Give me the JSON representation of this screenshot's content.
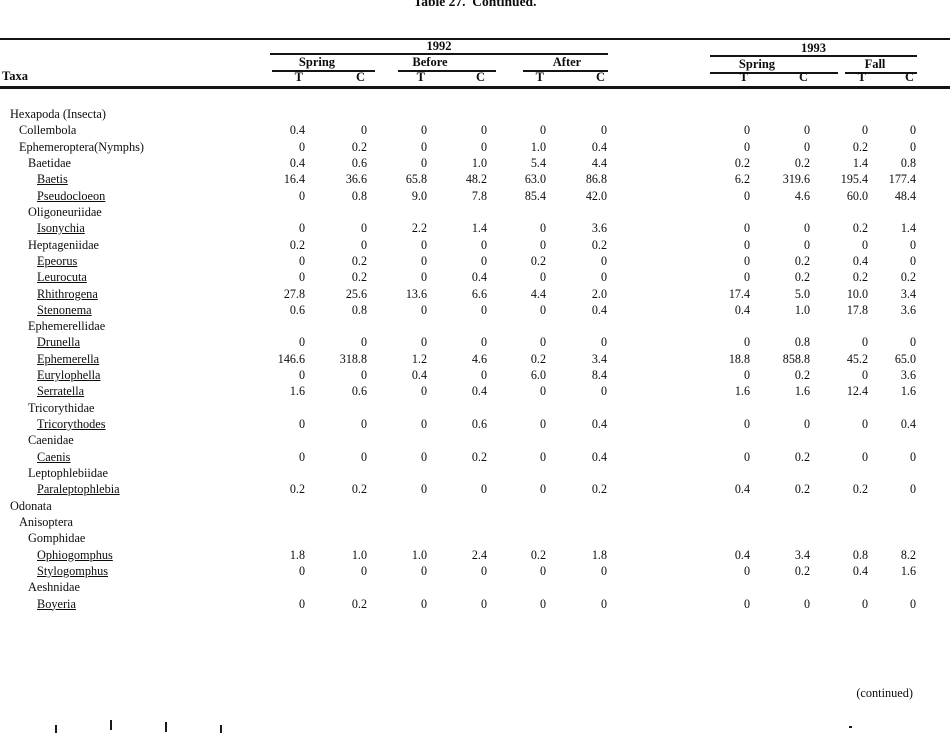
{
  "title": "Table 27.  Continued.",
  "table": {
    "taxa_header": "Taxa",
    "year_groups": [
      {
        "label": "1992",
        "seasons": [
          {
            "label": "Spring",
            "cols": [
              "T",
              "C"
            ]
          },
          {
            "label": "Before",
            "cols": [
              "T",
              "C"
            ]
          },
          {
            "label": "After",
            "cols": [
              "T",
              "C"
            ]
          }
        ]
      },
      {
        "label": "1993",
        "seasons": [
          {
            "label": "Spring",
            "cols": [
              "T",
              "C"
            ]
          },
          {
            "label": "Fall",
            "cols": [
              "T",
              "C"
            ]
          }
        ]
      }
    ],
    "rows": [
      {
        "name": "Hexapoda (Insecta)",
        "indent": 0,
        "underline": false,
        "values": [
          "",
          "",
          "",
          "",
          "",
          "",
          "",
          "",
          "",
          ""
        ]
      },
      {
        "name": "Collembola",
        "indent": 1,
        "underline": false,
        "values": [
          "0.4",
          "0",
          "0",
          "0",
          "0",
          "0",
          "0",
          "0",
          "0",
          "0"
        ]
      },
      {
        "name": "Ephemeroptera(Nymphs)",
        "indent": 1,
        "underline": false,
        "values": [
          "0",
          "0.2",
          "0",
          "0",
          "1.0",
          "0.4",
          "0",
          "0",
          "0.2",
          "0"
        ]
      },
      {
        "name": "Baetidae",
        "indent": 2,
        "underline": false,
        "values": [
          "0.4",
          "0.6",
          "0",
          "1.0",
          "5.4",
          "4.4",
          "0.2",
          "0.2",
          "1.4",
          "0.8"
        ]
      },
      {
        "name": "Baetis",
        "indent": 3,
        "underline": true,
        "values": [
          "16.4",
          "36.6",
          "65.8",
          "48.2",
          "63.0",
          "86.8",
          "6.2",
          "319.6",
          "195.4",
          "177.4"
        ]
      },
      {
        "name": "Pseudocloeon",
        "indent": 3,
        "underline": true,
        "values": [
          "0",
          "0.8",
          "9.0",
          "7.8",
          "85.4",
          "42.0",
          "0",
          "4.6",
          "60.0",
          "48.4"
        ]
      },
      {
        "name": "Oligoneuriidae",
        "indent": 2,
        "underline": false,
        "values": [
          "",
          "",
          "",
          "",
          "",
          "",
          "",
          "",
          "",
          ""
        ]
      },
      {
        "name": "Isonychia",
        "indent": 3,
        "underline": true,
        "values": [
          "0",
          "0",
          "2.2",
          "1.4",
          "0",
          "3.6",
          "0",
          "0",
          "0.2",
          "1.4"
        ]
      },
      {
        "name": "Heptageniidae",
        "indent": 2,
        "underline": false,
        "values": [
          "0.2",
          "0",
          "0",
          "0",
          "0",
          "0.2",
          "0",
          "0",
          "0",
          "0"
        ]
      },
      {
        "name": "Epeorus",
        "indent": 3,
        "underline": true,
        "values": [
          "0",
          "0.2",
          "0",
          "0",
          "0.2",
          "0",
          "0",
          "0.2",
          "0.4",
          "0"
        ]
      },
      {
        "name": "Leurocuta",
        "indent": 3,
        "underline": true,
        "values": [
          "0",
          "0.2",
          "0",
          "0.4",
          "0",
          "0",
          "0",
          "0.2",
          "0.2",
          "0.2"
        ]
      },
      {
        "name": "Rhithrogena",
        "indent": 3,
        "underline": true,
        "values": [
          "27.8",
          "25.6",
          "13.6",
          "6.6",
          "4.4",
          "2.0",
          "17.4",
          "5.0",
          "10.0",
          "3.4"
        ]
      },
      {
        "name": "Stenonema",
        "indent": 3,
        "underline": true,
        "values": [
          "0.6",
          "0.8",
          "0",
          "0",
          "0",
          "0.4",
          "0.4",
          "1.0",
          "17.8",
          "3.6"
        ]
      },
      {
        "name": "Ephemerellidae",
        "indent": 2,
        "underline": false,
        "values": [
          "",
          "",
          "",
          "",
          "",
          "",
          "",
          "",
          "",
          ""
        ]
      },
      {
        "name": "Drunella",
        "indent": 3,
        "underline": true,
        "values": [
          "0",
          "0",
          "0",
          "0",
          "0",
          "0",
          "0",
          "0.8",
          "0",
          "0"
        ]
      },
      {
        "name": "Ephemerella",
        "indent": 3,
        "underline": true,
        "values": [
          "146.6",
          "318.8",
          "1.2",
          "4.6",
          "0.2",
          "3.4",
          "18.8",
          "858.8",
          "45.2",
          "65.0"
        ]
      },
      {
        "name": "Eurylophella",
        "indent": 3,
        "underline": true,
        "values": [
          "0",
          "0",
          "0.4",
          "0",
          "6.0",
          "8.4",
          "0",
          "0.2",
          "0",
          "3.6"
        ]
      },
      {
        "name": "Serratella",
        "indent": 3,
        "underline": true,
        "values": [
          "1.6",
          "0.6",
          "0",
          "0.4",
          "0",
          "0",
          "1.6",
          "1.6",
          "12.4",
          "1.6"
        ]
      },
      {
        "name": "Tricorythidae",
        "indent": 2,
        "underline": false,
        "values": [
          "",
          "",
          "",
          "",
          "",
          "",
          "",
          "",
          "",
          ""
        ]
      },
      {
        "name": "Tricorythodes",
        "indent": 3,
        "underline": true,
        "values": [
          "0",
          "0",
          "0",
          "0.6",
          "0",
          "0.4",
          "0",
          "0",
          "0",
          "0.4"
        ]
      },
      {
        "name": "Caenidae",
        "indent": 2,
        "underline": false,
        "values": [
          "",
          "",
          "",
          "",
          "",
          "",
          "",
          "",
          "",
          ""
        ]
      },
      {
        "name": "Caenis",
        "indent": 3,
        "underline": true,
        "values": [
          "0",
          "0",
          "0",
          "0.2",
          "0",
          "0.4",
          "0",
          "0.2",
          "0",
          "0"
        ]
      },
      {
        "name": "Leptophlebiidae",
        "indent": 2,
        "underline": false,
        "values": [
          "",
          "",
          "",
          "",
          "",
          "",
          "",
          "",
          "",
          ""
        ]
      },
      {
        "name": "Paraleptophlebia",
        "indent": 3,
        "underline": true,
        "values": [
          "0.2",
          "0.2",
          "0",
          "0",
          "0",
          "0.2",
          "0.4",
          "0.2",
          "0.2",
          "0"
        ]
      },
      {
        "name": "Odonata",
        "indent": 0,
        "underline": false,
        "values": [
          "",
          "",
          "",
          "",
          "",
          "",
          "",
          "",
          "",
          ""
        ]
      },
      {
        "name": "Anisoptera",
        "indent": 1,
        "underline": false,
        "values": [
          "",
          "",
          "",
          "",
          "",
          "",
          "",
          "",
          "",
          ""
        ]
      },
      {
        "name": "Gomphidae",
        "indent": 2,
        "underline": false,
        "values": [
          "",
          "",
          "",
          "",
          "",
          "",
          "",
          "",
          "",
          ""
        ]
      },
      {
        "name": "Ophiogomphus",
        "indent": 3,
        "underline": true,
        "values": [
          "1.8",
          "1.0",
          "1.0",
          "2.4",
          "0.2",
          "1.8",
          "0.4",
          "3.4",
          "0.8",
          "8.2"
        ]
      },
      {
        "name": "Stylogomphus",
        "indent": 3,
        "underline": true,
        "values": [
          "0",
          "0",
          "0",
          "0",
          "0",
          "0",
          "0",
          "0.2",
          "0.4",
          "1.6"
        ]
      },
      {
        "name": "Aeshnidae",
        "indent": 2,
        "underline": false,
        "values": [
          "",
          "",
          "",
          "",
          "",
          "",
          "",
          "",
          "",
          ""
        ]
      },
      {
        "name": "Boyeria",
        "indent": 3,
        "underline": true,
        "values": [
          "0",
          "0.2",
          "0",
          "0",
          "0",
          "0",
          "0",
          "0",
          "0",
          "0"
        ]
      }
    ]
  },
  "footer": {
    "continued_note": "(continued)"
  }
}
